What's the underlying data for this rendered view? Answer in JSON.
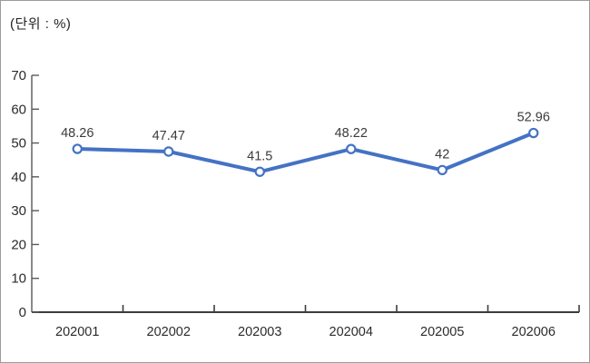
{
  "chart_data": {
    "type": "line",
    "unit_label": "(단위 : %)",
    "categories": [
      "202001",
      "202002",
      "202003",
      "202004",
      "202005",
      "202006"
    ],
    "series": [
      {
        "name": "series-1",
        "values": [
          48.26,
          47.47,
          41.5,
          48.22,
          42,
          52.96
        ],
        "labels": [
          "48.26",
          "47.47",
          "41.5",
          "48.22",
          "42",
          "52.96"
        ],
        "line_color": "#4472C4",
        "marker_fill": "#ffffff",
        "marker_stroke": "#4472C4"
      }
    ],
    "ylim": [
      0,
      70
    ],
    "y_tick_step": 10,
    "y_tick_labels": [
      "0",
      "10",
      "20",
      "30",
      "40",
      "50",
      "60",
      "70"
    ],
    "grid": "off",
    "legend": "none",
    "label_color": "#3b3b3b",
    "axis_text_color": "#2b2b2b"
  }
}
